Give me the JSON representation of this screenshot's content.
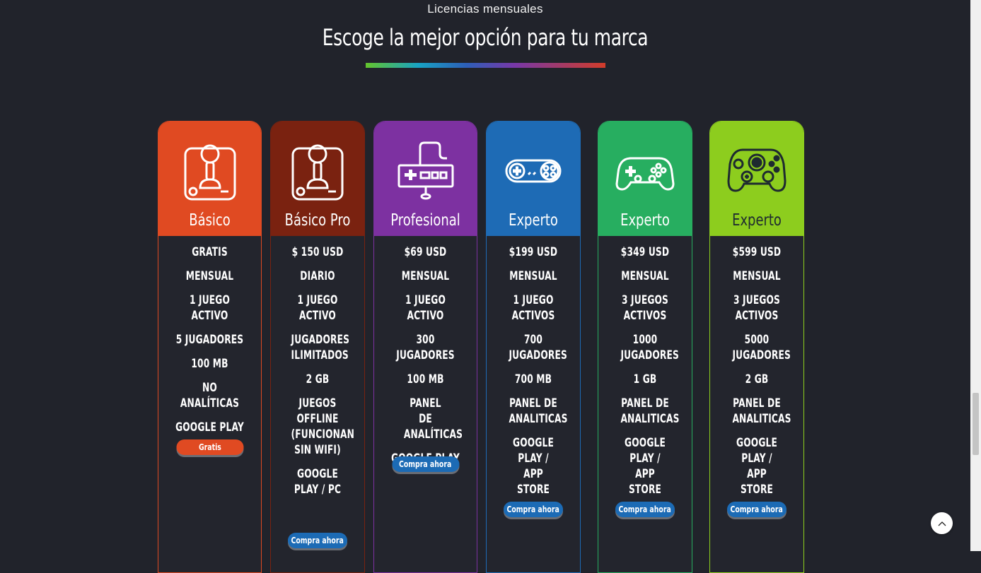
{
  "header": {
    "subtitle": "Licencias mensuales",
    "title": "Escoge la mejor opción para tu marca"
  },
  "plans": [
    {
      "name": "Básico",
      "color": "#e04a22",
      "icon": "joystick-icon",
      "features": [
        "Gratis",
        "Mensual",
        "1 juego activo",
        "5 jugadores",
        "100 MB",
        "No analíticas",
        "Google Play"
      ],
      "button": "Gratis",
      "button_color": "#e04a22"
    },
    {
      "name": "Básico Pro",
      "color": "#7a2210",
      "icon": "joystick-icon",
      "features": [
        "$ 150 USD",
        "Diario",
        "1 juego activo",
        "Jugadores ilimitados",
        "2 GB",
        "Juegos offline (funcionan sin wifi)",
        "Google Play / PC"
      ],
      "button": "Compra ahora",
      "button_color": "#1c6bb5"
    },
    {
      "name": "Profesional",
      "color": "#7d31a1",
      "icon": "nes-controller-icon",
      "features": [
        "$69 USD",
        "Mensual",
        "1 juego activo",
        "300 jugadores",
        "100 MB",
        "Panel de analíticas",
        "Google Play"
      ],
      "button": "Compra ahora",
      "button_color": "#1c6bb5"
    },
    {
      "name": "Experto",
      "color": "#1e6bb5",
      "icon": "snes-controller-icon",
      "features": [
        "$199 USD",
        "Mensual",
        "1 juego activos",
        "700 jugadores",
        "700 MB",
        "Panel de analiticas",
        "Google Play / App Store"
      ],
      "button": "Compra ahora",
      "button_color": "#1c6bb5"
    },
    {
      "name": "Experto",
      "color": "#27ae60",
      "icon": "gamepad-icon",
      "features": [
        "$349 USD",
        "Mensual",
        "3 juegos activos",
        "1000 jugadores",
        "1 GB",
        "Panel de analiticas",
        "Google Play / App Store"
      ],
      "button": "Compra ahora",
      "button_color": "#1c6bb5"
    },
    {
      "name": "Experto",
      "color": "#8dcd1e",
      "icon": "xbox-controller-icon",
      "features": [
        "$599 USD",
        "Mensual",
        "3 juegos activos",
        "5000 jugadores",
        "2 GB",
        "Panel de analiticas",
        "Google Play / App Store"
      ],
      "button": "Compra ahora",
      "button_color": "#1c6bb5"
    }
  ],
  "back_to_top_icon": "chevron-up-icon"
}
